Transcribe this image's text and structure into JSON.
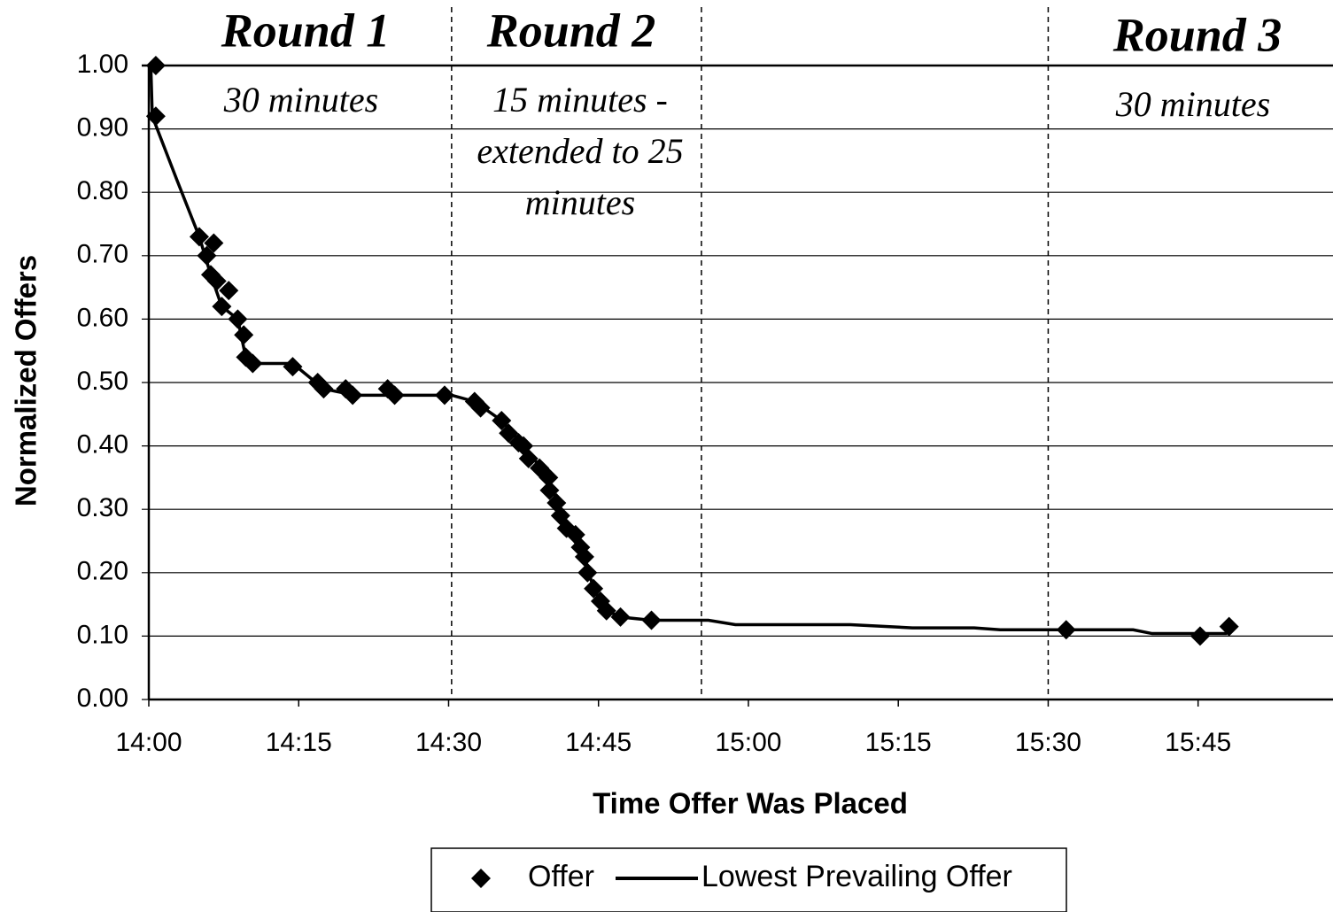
{
  "chart_data": {
    "type": "scatter-line",
    "xlabel": "Time Offer Was Placed",
    "ylabel": "Normalized Offers",
    "xlim": [
      840,
      958.5
    ],
    "ylim": [
      0,
      1.0
    ],
    "xticks": [
      {
        "value": 840,
        "label": "14:00"
      },
      {
        "value": 855,
        "label": "14:15"
      },
      {
        "value": 870,
        "label": "14:30"
      },
      {
        "value": 885,
        "label": "14:45"
      },
      {
        "value": 900,
        "label": "15:00"
      },
      {
        "value": 915,
        "label": "15:15"
      },
      {
        "value": 930,
        "label": "15:30"
      },
      {
        "value": 945,
        "label": "15:45"
      }
    ],
    "yticks": [
      {
        "value": 0,
        "label": "0.00"
      },
      {
        "value": 0.1,
        "label": "0.10"
      },
      {
        "value": 0.2,
        "label": "0.20"
      },
      {
        "value": 0.3,
        "label": "0.30"
      },
      {
        "value": 0.4,
        "label": "0.40"
      },
      {
        "value": 0.5,
        "label": "0.50"
      },
      {
        "value": 0.6,
        "label": "0.60"
      },
      {
        "value": 0.7,
        "label": "0.70"
      },
      {
        "value": 0.8,
        "label": "0.80"
      },
      {
        "value": 0.9,
        "label": "0.90"
      },
      {
        "value": 1.0,
        "label": "1.00"
      }
    ],
    "grid": true,
    "vlines": [
      870.3,
      895.3,
      930
    ],
    "annotations": [
      "Round 1",
      "30 minutes",
      "Round 2",
      "15 minutes -",
      "extended to 25",
      "minutes",
      "Round 3",
      "30 minutes"
    ],
    "legend": "bottom",
    "series": [
      {
        "name": "Offer",
        "color": "#000000",
        "marker": "diamond",
        "x": [
          840.7,
          840.7,
          845.05,
          845.8,
          846.5,
          846.2,
          846.8,
          848.0,
          847.3,
          848.9,
          849.5,
          849.7,
          850.4,
          854.4,
          856.9,
          857.5,
          859.7,
          860.4,
          863.9,
          864.6,
          869.6,
          872.6,
          873.2,
          875.3,
          876.0,
          877.0,
          877.5,
          878.0,
          879.1,
          880.0,
          880.1,
          880.8,
          881.2,
          881.8,
          882.7,
          883.2,
          883.6,
          883.9,
          884.5,
          885.2,
          885.8,
          887.2,
          890.3,
          931.8,
          945.2,
          948.1
        ],
        "values": [
          1.0,
          0.92,
          0.73,
          0.7,
          0.72,
          0.67,
          0.66,
          0.645,
          0.62,
          0.6,
          0.575,
          0.54,
          0.53,
          0.525,
          0.5,
          0.49,
          0.49,
          0.48,
          0.49,
          0.48,
          0.48,
          0.47,
          0.46,
          0.44,
          0.42,
          0.405,
          0.4,
          0.38,
          0.365,
          0.35,
          0.33,
          0.31,
          0.29,
          0.27,
          0.26,
          0.24,
          0.225,
          0.2,
          0.175,
          0.155,
          0.14,
          0.13,
          0.125,
          0.11,
          0.1,
          0.115
        ]
      },
      {
        "name": "Lowest Prevailing Offer",
        "color": "#000000",
        "marker": "line",
        "x": [
          840.2,
          840.35,
          842.8,
          845.05,
          846.2,
          847.3,
          848.9,
          849.7,
          850.4,
          854.4,
          857.5,
          860.6,
          870.3,
          872.6,
          875.3,
          877.5,
          880.0,
          881.8,
          883.6,
          884.5,
          885.8,
          887.2,
          890.3,
          896.0,
          898.7,
          910.2,
          916.4,
          922.6,
          925.2,
          938.5,
          940.4,
          947.9
        ],
        "values": [
          1.0,
          0.92,
          0.82,
          0.73,
          0.67,
          0.62,
          0.6,
          0.54,
          0.53,
          0.53,
          0.49,
          0.48,
          0.48,
          0.47,
          0.44,
          0.4,
          0.35,
          0.27,
          0.225,
          0.175,
          0.14,
          0.13,
          0.125,
          0.125,
          0.118,
          0.118,
          0.113,
          0.113,
          0.11,
          0.11,
          0.104,
          0.104
        ]
      }
    ]
  }
}
